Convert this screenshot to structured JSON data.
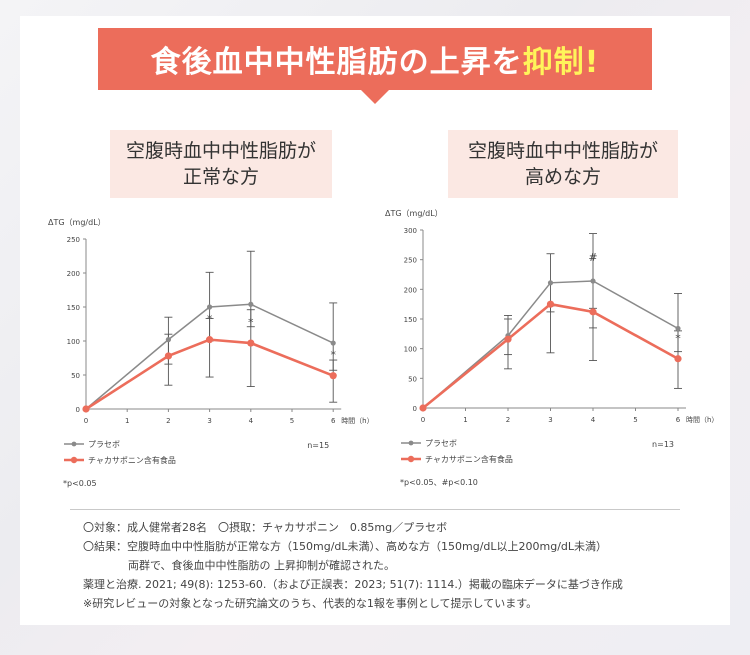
{
  "banner": {
    "title_main": "食後血中中性脂肪の上昇を",
    "title_highlight": "抑制!"
  },
  "panels": [
    {
      "line1": "空腹時血中中性脂肪が",
      "line2": "正常な方"
    },
    {
      "line1": "空腹時血中中性脂肪が",
      "line2": "高めな方"
    }
  ],
  "notes": {
    "line1": "〇対象：成人健常者28名　〇摂取：チャカサポニン　0.85mg／プラセボ",
    "line2": "〇結果：空腹時血中中性脂肪が正常な方（150mg/dL未満）、高めな方（150mg/dL以上200mg/dL未満）",
    "line3": "両群で、食後血中中性脂肪の 上昇抑制が確認された。",
    "line4": "薬理と治療. 2021; 49(8): 1253-60.（および正誤表：2023; 51(7): 1114.）掲載の臨床データに基づき作成",
    "line5": "※研究レビューの対象となった研究論文のうち、代表的な1報を事例として提示しています。"
  },
  "colors": {
    "placebo": "#8a8a8a",
    "test": "#ec6d5b",
    "axis": "#888888",
    "banner": "#ec6d5b",
    "highlight": "#fff45a"
  },
  "chart_data": [
    {
      "type": "line",
      "ylabel": "ΔTG（mg/dL）",
      "xlabel": "時間（h）",
      "x": [
        0,
        2,
        3,
        4,
        6
      ],
      "xticks": [
        0,
        1,
        2,
        3,
        4,
        5,
        6
      ],
      "ylim": [
        0,
        250
      ],
      "yticks": [
        0,
        50,
        100,
        150,
        200,
        250
      ],
      "series": [
        {
          "name": "プラセボ",
          "values": [
            0,
            102,
            150,
            154,
            97
          ],
          "err_low": [
            0,
            66,
            100,
            121,
            57
          ],
          "err_high": [
            0,
            135,
            201,
            232,
            156
          ],
          "color": "#8a8a8a"
        },
        {
          "name": "チャカサポニン含有食品",
          "values": [
            0,
            78,
            102,
            97,
            49
          ],
          "err_low": [
            0,
            35,
            47,
            33,
            10
          ],
          "err_high": [
            0,
            110,
            133,
            146,
            72
          ],
          "color": "#ec6d5b"
        }
      ],
      "markers": [
        {
          "x": 3,
          "y": 102,
          "text": "*"
        },
        {
          "x": 4,
          "y": 97,
          "text": "*"
        },
        {
          "x": 6,
          "y": 49,
          "text": "*"
        }
      ],
      "n_label": "n=15",
      "footnote": "*p<0.05"
    },
    {
      "type": "line",
      "ylabel": "ΔTG（mg/dL）",
      "xlabel": "時間（h）",
      "x": [
        0,
        2,
        3,
        4,
        6
      ],
      "xticks": [
        0,
        1,
        2,
        3,
        4,
        5,
        6
      ],
      "ylim": [
        0,
        300
      ],
      "yticks": [
        0,
        50,
        100,
        150,
        200,
        250,
        300
      ],
      "series": [
        {
          "name": "プラセボ",
          "values": [
            0,
            122,
            211,
            214,
            134
          ],
          "err_low": [
            0,
            90,
            162,
            135,
            95
          ],
          "err_high": [
            0,
            156,
            260,
            294,
            193
          ],
          "color": "#8a8a8a"
        },
        {
          "name": "チャカサポニン含有食品",
          "values": [
            0,
            116,
            175,
            162,
            83
          ],
          "err_low": [
            0,
            66,
            93,
            80,
            33
          ],
          "err_high": [
            0,
            150,
            172,
            168,
            130
          ],
          "color": "#ec6d5b"
        }
      ],
      "markers": [
        {
          "x": 4,
          "y": 214,
          "text": "#"
        },
        {
          "x": 6,
          "y": 83,
          "text": "*"
        }
      ],
      "n_label": "n=13",
      "footnote": "*p<0.05、#p<0.10"
    }
  ]
}
